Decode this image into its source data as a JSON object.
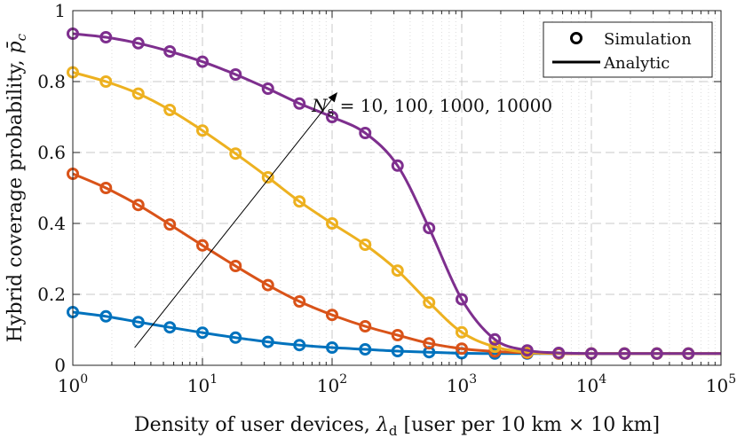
{
  "chart_data": {
    "type": "line",
    "title": "",
    "xlabel": "Density of user devices, λ_d [user per 10 km × 10 km]",
    "xlabel_parts": {
      "before": "Density of user devices, ",
      "symbol": "λ",
      "subscript": "d",
      "after": " [user per 10 km × 10 km]"
    },
    "ylabel": "Hybrid coverage probability, p̄c",
    "ylabel_text": "Hybrid coverage probability, ",
    "ylabel_symbol": "p̄",
    "ylabel_sub": "c",
    "x_scale": "log",
    "xlim": [
      1,
      100000
    ],
    "ylim": [
      0,
      1
    ],
    "x_ticks": [
      {
        "base": "10",
        "exp": "0"
      },
      {
        "base": "10",
        "exp": "1"
      },
      {
        "base": "10",
        "exp": "2"
      },
      {
        "base": "10",
        "exp": "3"
      },
      {
        "base": "10",
        "exp": "4"
      },
      {
        "base": "10",
        "exp": "5"
      }
    ],
    "y_ticks": [
      "0",
      "0.2",
      "0.4",
      "0.6",
      "0.8",
      "1"
    ],
    "grid": true,
    "legend": {
      "location": "top-right",
      "entries": [
        {
          "label": "Simulation",
          "marker": "circle"
        },
        {
          "label": "Analytic",
          "marker": "line"
        }
      ]
    },
    "annotation": {
      "symbol": "N",
      "subscript": "s",
      "text": " = 10, 100, 1000, 10000",
      "arrow_from": [
        3,
        0.05
      ],
      "arrow_to": [
        110,
        0.77
      ],
      "text_at": [
        105,
        0.755
      ]
    },
    "series": [
      {
        "name": "Ns = 10",
        "color": "#0072BD",
        "x": [
          1,
          1.8,
          3.2,
          5.6,
          10,
          18,
          32,
          56,
          100,
          180,
          320,
          560,
          1000,
          1800,
          3200,
          5600,
          10000,
          18000,
          32000,
          56000
        ],
        "values": [
          0.15,
          0.138,
          0.122,
          0.107,
          0.092,
          0.078,
          0.066,
          0.057,
          0.05,
          0.045,
          0.04,
          0.037,
          0.034,
          0.033,
          0.033,
          0.033,
          0.033,
          0.033,
          0.033,
          0.033
        ]
      },
      {
        "name": "Ns = 100",
        "color": "#D95319",
        "x": [
          1,
          1.8,
          3.2,
          5.6,
          10,
          18,
          32,
          56,
          100,
          180,
          320,
          560,
          1000,
          1800,
          3200,
          5600,
          10000,
          18000,
          32000,
          56000
        ],
        "values": [
          0.54,
          0.5,
          0.452,
          0.397,
          0.338,
          0.28,
          0.226,
          0.18,
          0.142,
          0.11,
          0.085,
          0.062,
          0.047,
          0.039,
          0.035,
          0.033,
          0.033,
          0.033,
          0.033,
          0.033
        ]
      },
      {
        "name": "Ns = 1000",
        "color": "#EDB120",
        "x": [
          1,
          1.8,
          3.2,
          5.6,
          10,
          18,
          32,
          56,
          100,
          180,
          320,
          560,
          1000,
          1800,
          3200,
          5600,
          10000,
          18000,
          32000,
          56000
        ],
        "values": [
          0.826,
          0.8,
          0.766,
          0.72,
          0.662,
          0.597,
          0.53,
          0.462,
          0.4,
          0.34,
          0.267,
          0.177,
          0.093,
          0.052,
          0.037,
          0.034,
          0.033,
          0.033,
          0.033,
          0.033
        ]
      },
      {
        "name": "Ns = 10000",
        "color": "#7E2F8E",
        "x": [
          1,
          1.8,
          3.2,
          5.6,
          10,
          18,
          32,
          56,
          100,
          180,
          320,
          560,
          1000,
          1800,
          3200,
          5600,
          10000,
          18000,
          32000,
          56000
        ],
        "values": [
          0.935,
          0.925,
          0.908,
          0.885,
          0.856,
          0.82,
          0.78,
          0.738,
          0.7,
          0.655,
          0.563,
          0.387,
          0.186,
          0.073,
          0.042,
          0.035,
          0.033,
          0.033,
          0.033,
          0.033
        ]
      }
    ]
  }
}
